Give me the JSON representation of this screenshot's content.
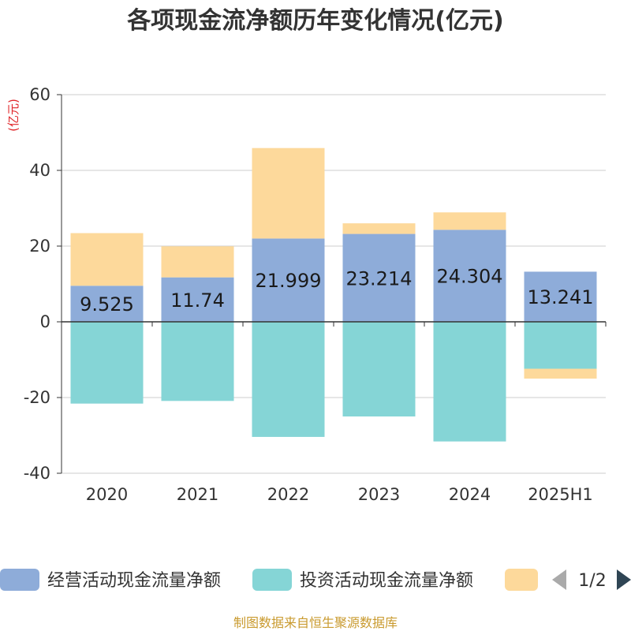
{
  "chart_data": {
    "type": "bar",
    "stacked": true,
    "title": "各项现金流净额历年变化情况(亿元)",
    "ylabel": "(亿元)",
    "categories": [
      "2020",
      "2021",
      "2022",
      "2023",
      "2024",
      "2025H1"
    ],
    "ylim": [
      -40,
      60
    ],
    "yticks": [
      60,
      40,
      20,
      0,
      -20,
      -40
    ],
    "grid": true,
    "series": [
      {
        "name": "经营活动现金流量净额",
        "color": "#8eacd9",
        "values": [
          9.525,
          11.74,
          21.999,
          23.214,
          24.304,
          13.241
        ],
        "labels": [
          "9.525",
          "11.74",
          "21.999",
          "23.214",
          "24.304",
          "13.241"
        ]
      },
      {
        "name": "投资活动现金流量净额",
        "color": "#85d5d6",
        "values": [
          -21.6,
          -20.9,
          -30.4,
          -25.0,
          -31.6,
          -12.4
        ]
      },
      {
        "name": "",
        "color": "#fdd99b",
        "values": [
          13.9,
          8.2,
          23.9,
          2.8,
          4.6,
          -2.6
        ]
      }
    ],
    "legend": {
      "position": "bottom",
      "page": "1/2"
    }
  },
  "source": "制图数据来自恒生聚源数据库"
}
